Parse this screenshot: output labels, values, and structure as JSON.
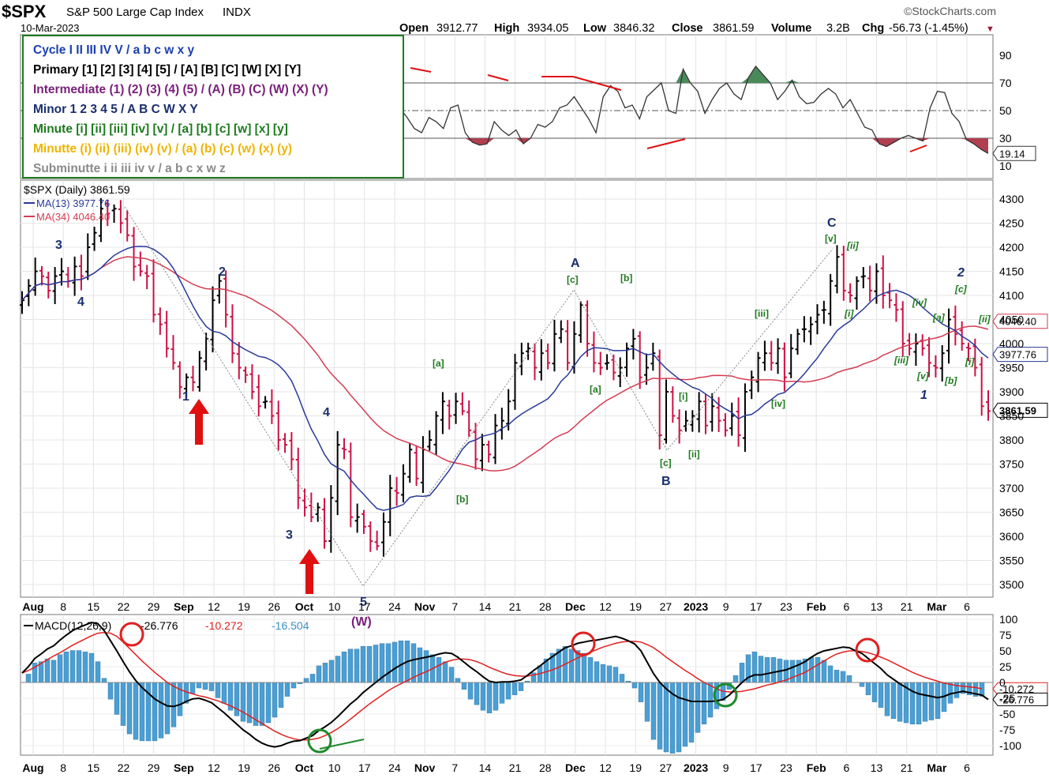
{
  "header": {
    "symbol": "$SPX",
    "name": "S&P 500 Large Cap Index",
    "exchange": "INDX",
    "date": "10-Mar-2023",
    "brand": "©StockCharts.com",
    "open_label": "Open",
    "open": "3912.77",
    "high_label": "High",
    "high": "3934.05",
    "low_label": "Low",
    "low": "3846.32",
    "close_label": "Close",
    "close": "3861.59",
    "volume_label": "Volume",
    "volume": "3.2B",
    "chg_label": "Chg",
    "chg": "-56.73 (-1.45%)",
    "chg_arrow": "▼"
  },
  "wave_legend": [
    {
      "text": "Cycle I II III IV V / a b c w x y",
      "color": "#1a3fb0"
    },
    {
      "text": "Primary [1] [2] [3] [4] [5] / [A] [B] [C] [W] [X] [Y]",
      "color": "#000000"
    },
    {
      "text": "Intermediate (1) (2) (3) (4) (5) / (A) (B) (C) (W) (X) (Y)",
      "color": "#7a1f7a"
    },
    {
      "text": "Minor 1 2 3 4 5 / A B C W X Y",
      "color": "#1a2e6e"
    },
    {
      "text": "Minute [i] [ii] [iii] [iv] [v] / [a] [b] [c] [w] [x] [y]",
      "color": "#1e7a1e"
    },
    {
      "text": "Minutte (i) (ii) (iii) (iv) (v) / (a) (b) (c) (w) (x) (y)",
      "color": "#f0b400"
    },
    {
      "text": "Subminutte i ii iii iv v / a b c x w z",
      "color": "#8a8a8a"
    }
  ],
  "colors": {
    "up": "#000000",
    "down": "#cc1144",
    "ma13": "#2a3a9a",
    "ma34": "#d43c52",
    "macd": "#000000",
    "signal": "#e02020",
    "hist": "#4a9fd4",
    "rsi": "#333333",
    "rsi_over": "#4a8a5a",
    "rsi_under": "#b04050",
    "wave_green": "#1e7a1e",
    "wave_navy": "#1a2e6e",
    "wave_purple": "#7a1f7a",
    "arrow": "#e01010"
  },
  "chart_data": [
    {
      "type": "line",
      "name": "RSI(14)",
      "ylim": [
        0,
        100
      ],
      "ticks": [
        "90",
        "70",
        "50",
        "30",
        "10"
      ],
      "levels": [
        70,
        50,
        30
      ],
      "values": [
        64,
        66,
        60,
        68,
        64,
        50,
        48,
        45,
        45,
        44,
        50,
        70,
        72,
        70,
        66,
        72,
        58,
        54,
        48,
        54,
        44,
        46,
        44,
        58,
        67,
        70,
        72,
        68,
        60,
        48,
        52,
        60,
        72,
        74,
        72,
        71,
        65,
        58,
        44,
        40,
        54,
        52,
        45,
        41,
        42,
        44,
        58,
        66,
        58,
        50,
        42,
        36,
        52,
        45,
        37,
        34,
        45,
        42,
        37,
        52,
        54,
        34,
        27,
        25,
        26,
        42,
        36,
        32,
        36,
        26,
        30,
        40,
        38,
        42,
        52,
        54,
        60,
        52,
        44,
        34,
        60,
        68,
        64,
        52,
        54,
        44,
        60,
        65,
        70,
        50,
        48,
        80,
        70,
        64,
        48,
        58,
        66,
        70,
        62,
        58,
        74,
        82,
        76,
        70,
        58,
        64,
        72,
        60,
        55,
        56,
        62,
        66,
        62,
        52,
        58,
        48,
        38,
        36,
        26,
        24,
        27,
        30,
        32,
        30,
        28,
        52,
        64,
        63,
        48,
        42,
        29,
        26,
        22,
        19
      ],
      "last_value": "19.14"
    },
    {
      "type": "bar",
      "name": "$SPX (Daily)",
      "legend": [
        "$SPX (Daily) 3861.59",
        "MA(13) 3977.76",
        "MA(34) 4046.40"
      ],
      "ylim": [
        3460,
        4340
      ],
      "ticks": [
        "4300",
        "4250",
        "4200",
        "4150",
        "4100",
        "4050",
        "4000",
        "3950",
        "3900",
        "3850",
        "3800",
        "3750",
        "3700",
        "3650",
        "3600",
        "3550",
        "3500"
      ],
      "xlabels": [
        "Aug",
        "8",
        "15",
        "22",
        "29",
        "Sep",
        "12",
        "19",
        "26",
        "Oct",
        "10",
        "17",
        "24",
        "Nov",
        "7",
        "14",
        "21",
        "28",
        "Dec",
        "12",
        "19",
        "27",
        "2023",
        "9",
        "17",
        "23",
        "Feb",
        "6",
        "13",
        "21",
        "Mar",
        "6"
      ],
      "closes": [
        4090,
        4120,
        4150,
        4140,
        4110,
        4140,
        4150,
        4130,
        4160,
        4140,
        4200,
        4230,
        4280,
        4270,
        4280,
        4250,
        4225,
        4160,
        4150,
        4140,
        4060,
        4040,
        3990,
        3960,
        3910,
        3930,
        3920,
        3970,
        4010,
        4090,
        4130,
        4060,
        3980,
        3950,
        3935,
        3900,
        3870,
        3880,
        3850,
        3800,
        3790,
        3760,
        3680,
        3660,
        3640,
        3660,
        3590,
        3680,
        3790,
        3780,
        3640,
        3640,
        3620,
        3590,
        3580,
        3630,
        3700,
        3690,
        3730,
        3780,
        3720,
        3780,
        3800,
        3850,
        3880,
        3850,
        3880,
        3860,
        3820,
        3760,
        3790,
        3770,
        3830,
        3840,
        3880,
        3960,
        3980,
        3990,
        3950,
        3980,
        3960,
        4020,
        4030,
        3960,
        4020,
        4080,
        4000,
        3960,
        3950,
        3960,
        3940,
        3950,
        3990,
        4010,
        3930,
        3950,
        3980,
        3810,
        3900,
        3850,
        3820,
        3840,
        3850,
        3880,
        3830,
        3870,
        3840,
        3820,
        3850,
        3810,
        3900,
        3930,
        3970,
        3980,
        3960,
        3990,
        3930,
        3990,
        4020,
        4030,
        4040,
        4060,
        4070,
        4130,
        4180,
        4110,
        4100,
        4130,
        4140,
        4110,
        4150,
        4100,
        4090,
        4070,
        4000,
        3990,
        4000,
        3990,
        3960,
        3950,
        3980,
        4050,
        4020,
        4000,
        3990,
        3950,
        3870,
        3860
      ],
      "ma13_last": "3977.76",
      "ma34_last": "4046.40",
      "close_last": "3861.59"
    },
    {
      "type": "area",
      "name": "MACD(12,26,9)",
      "legend": [
        "MACD(12,26,9)",
        "-26.776",
        "-10.272",
        "-16.504"
      ],
      "ylim": [
        -112,
        112
      ],
      "ticks": [
        "100",
        "75",
        "50",
        "25",
        "0",
        "-25",
        "-50",
        "-75",
        "-100"
      ],
      "macd": [
        15,
        25,
        38,
        45,
        53,
        58,
        67,
        75,
        82,
        87,
        91,
        95,
        93,
        82,
        66,
        50,
        33,
        17,
        3,
        -8,
        -17,
        -26,
        -32,
        -37,
        -38,
        -35,
        -30,
        -26,
        -25,
        -28,
        -32,
        -40,
        -48,
        -57,
        -66,
        -75,
        -82,
        -90,
        -96,
        -100,
        -102,
        -100,
        -96,
        -93,
        -92,
        -88,
        -84,
        -76,
        -70,
        -63,
        -54,
        -44,
        -34,
        -26,
        -16,
        -8,
        0,
        8,
        15,
        22,
        28,
        33,
        36,
        38,
        40,
        42,
        45,
        47,
        46,
        40,
        32,
        24,
        17,
        9,
        2,
        0,
        1,
        1,
        2,
        4,
        11,
        19,
        26,
        34,
        41,
        48,
        55,
        58,
        62,
        64,
        66,
        67,
        69,
        71,
        73,
        70,
        66,
        61,
        50,
        32,
        14,
        0,
        -10,
        -18,
        -24,
        -27,
        -30,
        -30,
        -30,
        -30,
        -29,
        -27,
        -20,
        -10,
        0,
        8,
        12,
        12,
        14,
        16,
        18,
        20,
        24,
        28,
        33,
        40,
        46,
        50,
        52,
        54,
        56,
        55,
        50,
        46,
        38,
        30,
        22,
        12,
        5,
        -2,
        -8,
        -14,
        -18,
        -20,
        -22,
        -24,
        -22,
        -18,
        -16,
        -14,
        -16,
        -18,
        -20,
        -27
      ],
      "signal": [
        15,
        19,
        24,
        30,
        36,
        42,
        47,
        53,
        59,
        64,
        69,
        74,
        78,
        79,
        78,
        73,
        64,
        54,
        44,
        34,
        25,
        16,
        8,
        0,
        -6,
        -11,
        -15,
        -18,
        -21,
        -23,
        -26,
        -29,
        -33,
        -37,
        -42,
        -47,
        -53,
        -59,
        -65,
        -71,
        -77,
        -82,
        -86,
        -89,
        -91,
        -91,
        -90,
        -88,
        -84,
        -79,
        -73,
        -66,
        -58,
        -50,
        -42,
        -34,
        -27,
        -20,
        -13,
        -7,
        -2,
        3,
        8,
        13,
        17,
        22,
        27,
        32,
        35,
        37,
        37,
        36,
        33,
        29,
        24,
        20,
        16,
        13,
        11,
        10,
        10,
        12,
        14,
        17,
        20,
        24,
        29,
        34,
        39,
        43,
        48,
        52,
        56,
        59,
        62,
        64,
        65,
        65,
        64,
        60,
        55,
        48,
        40,
        33,
        26,
        19,
        13,
        6,
        0,
        -5,
        -10,
        -14,
        -15,
        -15,
        -14,
        -12,
        -10,
        -7,
        -4,
        -2,
        1,
        4,
        8,
        12,
        16,
        22,
        28,
        34,
        40,
        45,
        48,
        50,
        50,
        49,
        47,
        44,
        40,
        36,
        31,
        26,
        21,
        16,
        12,
        8,
        5,
        2,
        -1,
        -3,
        -5,
        -6,
        -7,
        -8,
        -10
      ],
      "hist_last": "-16.504"
    }
  ],
  "labels": {
    "w3_top": "3",
    "w4_top": "4",
    "w1": "1",
    "w2": "2",
    "w3": "3",
    "w4": "4",
    "w5": "5",
    "W": "(W)",
    "A": "A",
    "B": "B",
    "C": "C",
    "a1": "[a]",
    "b1": "[b]",
    "a2": "[a]",
    "b2": "[b]",
    "c_A": "[c]",
    "c_B": "[c]",
    "i1": "[i]",
    "ii1": "[ii]",
    "iii1": "[iii]",
    "iv1": "[iv]",
    "v_C": "[v]",
    "ii_C": "[ii]",
    "i_2": "[i]",
    "iii_2": "[iii]",
    "iv_2": "[iv]",
    "v_2": "[v]",
    "w1b": "1",
    "w2b": "2",
    "a3": "[a]",
    "c3": "[c]",
    "b3": "[b]",
    "ii3": "[ii]",
    "i3": "[i]"
  }
}
